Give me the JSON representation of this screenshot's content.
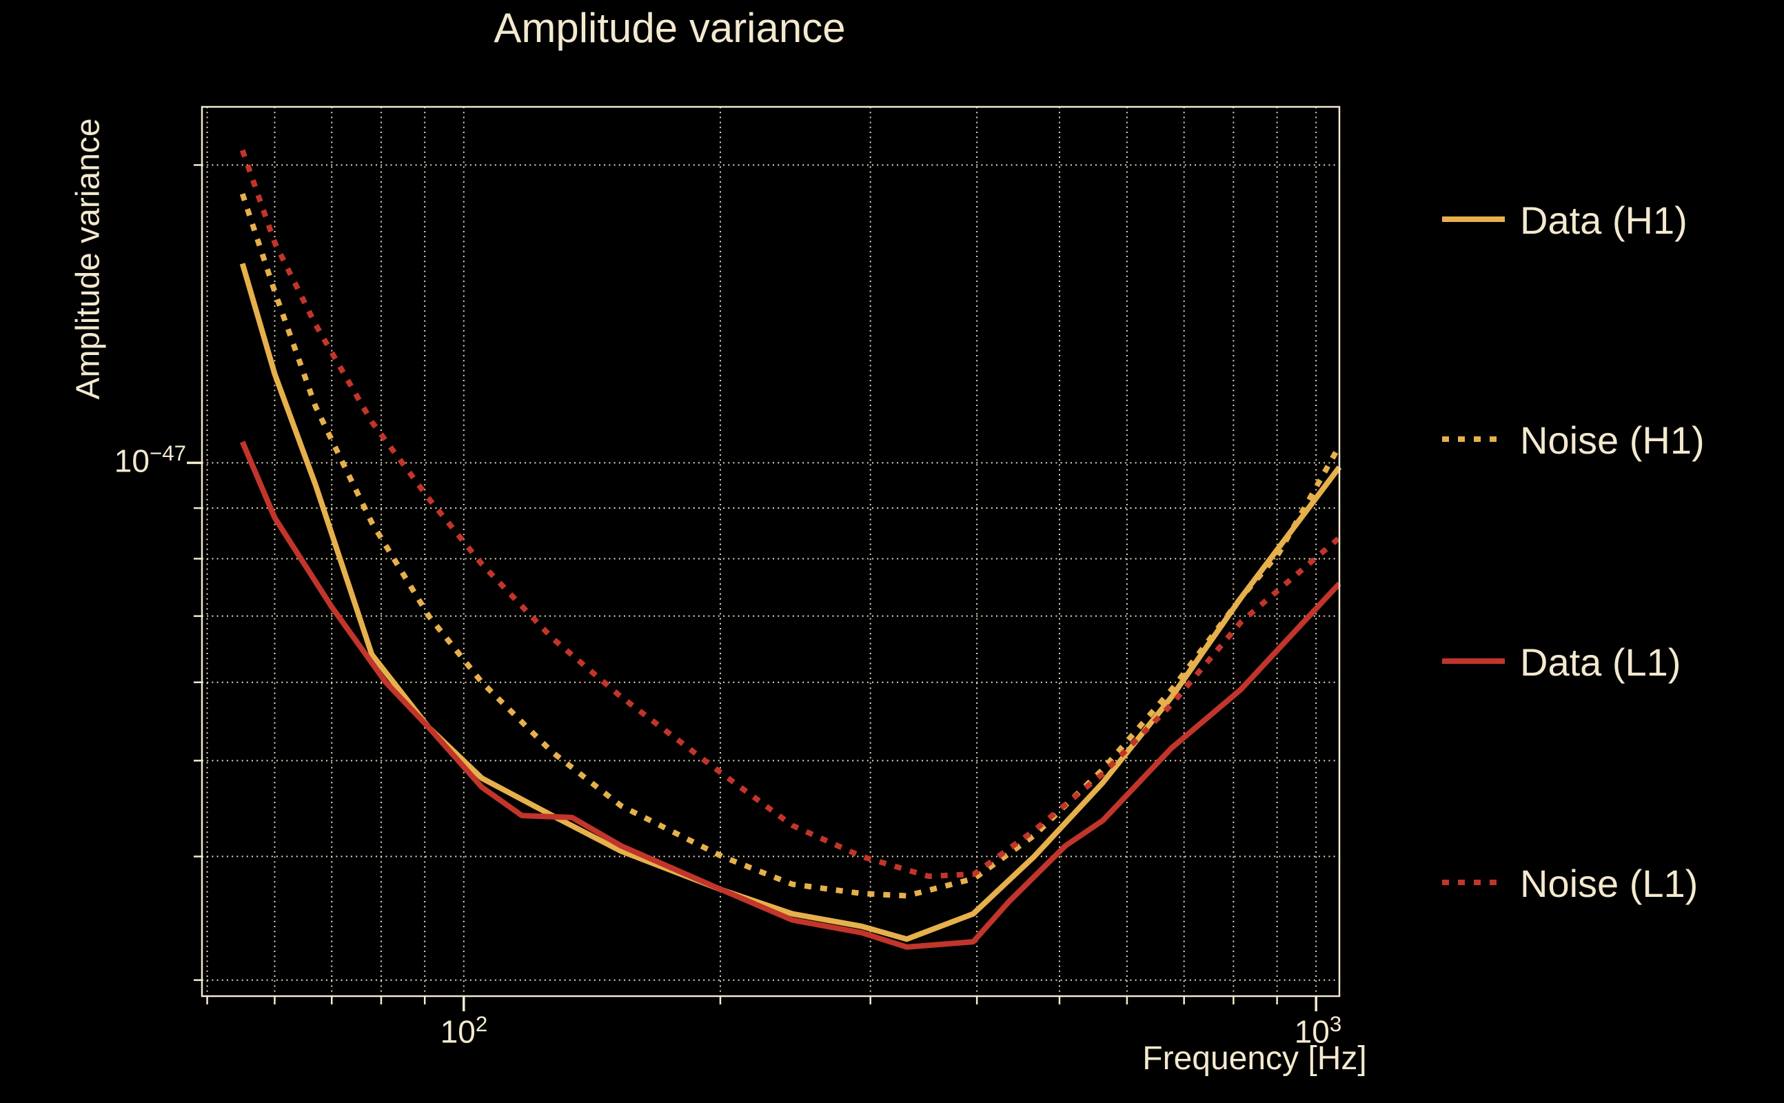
{
  "title": "Amplitude variance",
  "colors": {
    "background": "#000000",
    "foreground": "#F3E9CF",
    "h1_gold": "#E6B04C",
    "l1_red": "#C1352B"
  },
  "chart_data": {
    "type": "line",
    "title": "Amplitude variance",
    "xlabel": "Frequency [Hz]",
    "ylabel": "Amplitude variance",
    "xscale": "log",
    "yscale": "log",
    "xlim": [
      49.3,
      1065
    ],
    "ylim": [
      2.89e-48,
      2.29e-47
    ],
    "grid": "both",
    "x_major_ticks": [
      100,
      1000
    ],
    "x_minor_ticks": [
      50,
      60,
      70,
      80,
      90,
      200,
      300,
      400,
      500,
      600,
      700,
      800,
      900
    ],
    "y_major_ticks": [
      1e-47
    ],
    "y_minor_ticks": [
      2e-47,
      9e-48,
      8e-48,
      7e-48,
      6e-48,
      5e-48,
      4e-48,
      3e-48
    ],
    "x_tick_labels": [
      {
        "base": "10",
        "exp": "2"
      },
      {
        "base": "10",
        "exp": "3"
      }
    ],
    "y_tick_labels": [
      {
        "base": "10",
        "exp": "−47"
      }
    ],
    "legend_position": "right",
    "series": [
      {
        "name": "Data (H1)",
        "key": "data_h1",
        "color": "#E6B04C",
        "line_style": "solid",
        "points": [
          [
            55,
            1.59e-47
          ],
          [
            60,
            1.23e-47
          ],
          [
            67,
            9.5e-48
          ],
          [
            78,
            6.4e-48
          ],
          [
            91,
            5.4e-48
          ],
          [
            105,
            4.8e-48
          ],
          [
            127,
            4.4e-48
          ],
          [
            153,
            4.05e-48
          ],
          [
            201,
            3.7e-48
          ],
          [
            243,
            3.5e-48
          ],
          [
            293,
            3.4e-48
          ],
          [
            331,
            3.3e-48
          ],
          [
            396,
            3.5e-48
          ],
          [
            467,
            4e-48
          ],
          [
            562,
            4.75e-48
          ],
          [
            677,
            5.8e-48
          ],
          [
            816,
            7.3e-48
          ],
          [
            1065,
            9.9e-48
          ]
        ]
      },
      {
        "name": "Noise (H1)",
        "key": "noise_h1",
        "color": "#E6B04C",
        "line_style": "dotted",
        "points": [
          [
            55,
            1.87e-47
          ],
          [
            60,
            1.49e-47
          ],
          [
            67,
            1.14e-47
          ],
          [
            78,
            8.7e-48
          ],
          [
            91,
            7e-48
          ],
          [
            105,
            6e-48
          ],
          [
            127,
            5.1e-48
          ],
          [
            153,
            4.5e-48
          ],
          [
            201,
            4e-48
          ],
          [
            243,
            3.75e-48
          ],
          [
            293,
            3.67e-48
          ],
          [
            331,
            3.65e-48
          ],
          [
            397,
            3.8e-48
          ],
          [
            467,
            4.2e-48
          ],
          [
            562,
            4.9e-48
          ],
          [
            677,
            5.9e-48
          ],
          [
            816,
            7.3e-48
          ],
          [
            904,
            8.1e-48
          ],
          [
            1065,
            1.04e-47
          ]
        ]
      },
      {
        "name": "Data (L1)",
        "key": "data_l1",
        "color": "#C1352B",
        "line_style": "solid",
        "points": [
          [
            55,
            1.05e-47
          ],
          [
            60,
            8.8e-48
          ],
          [
            70,
            7.15e-48
          ],
          [
            81,
            6e-48
          ],
          [
            91,
            5.4e-48
          ],
          [
            105,
            4.7e-48
          ],
          [
            117,
            4.4e-48
          ],
          [
            134,
            4.38e-48
          ],
          [
            153,
            4.1e-48
          ],
          [
            201,
            3.7e-48
          ],
          [
            243,
            3.45e-48
          ],
          [
            293,
            3.35e-48
          ],
          [
            331,
            3.24e-48
          ],
          [
            396,
            3.28e-48
          ],
          [
            436,
            3.6e-48
          ],
          [
            508,
            4.1e-48
          ],
          [
            562,
            4.35e-48
          ],
          [
            677,
            5.15e-48
          ],
          [
            816,
            5.9e-48
          ],
          [
            1065,
            7.55e-48
          ]
        ]
      },
      {
        "name": "Noise (L1)",
        "key": "noise_l1",
        "color": "#C1352B",
        "line_style": "dotted",
        "points": [
          [
            55,
            2.07e-47
          ],
          [
            60,
            1.67e-47
          ],
          [
            67,
            1.38e-47
          ],
          [
            78,
            1.1e-47
          ],
          [
            91,
            9.2e-48
          ],
          [
            105,
            7.9e-48
          ],
          [
            127,
            6.65e-48
          ],
          [
            153,
            5.8e-48
          ],
          [
            201,
            4.85e-48
          ],
          [
            243,
            4.3e-48
          ],
          [
            293,
            4e-48
          ],
          [
            351,
            3.82e-48
          ],
          [
            397,
            3.84e-48
          ],
          [
            467,
            4.25e-48
          ],
          [
            562,
            4.85e-48
          ],
          [
            677,
            5.7e-48
          ],
          [
            816,
            6.9e-48
          ],
          [
            1065,
            8.4e-48
          ]
        ]
      }
    ]
  },
  "legend": {
    "entries": [
      {
        "label": "Data (H1)",
        "series": "data_h1"
      },
      {
        "label": "Noise (H1)",
        "series": "noise_h1"
      },
      {
        "label": "Data (L1)",
        "series": "data_l1"
      },
      {
        "label": "Noise (L1)",
        "series": "noise_l1"
      }
    ]
  }
}
